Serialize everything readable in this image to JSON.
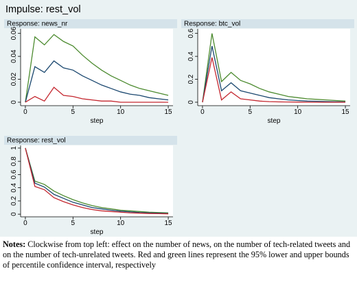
{
  "title": "Impulse: rest_vol",
  "chart_data": [
    {
      "type": "line",
      "title": "Response: news_nr",
      "x_label": "step",
      "x": [
        0,
        1,
        2,
        3,
        4,
        5,
        6,
        7,
        8,
        9,
        10,
        11,
        12,
        13,
        14,
        15
      ],
      "series": [
        {
          "color": "#4b8a2e",
          "values": [
            0,
            0.057,
            0.05,
            0.059,
            0.053,
            0.049,
            0.041,
            0.034,
            0.028,
            0.023,
            0.019,
            0.015,
            0.012,
            0.01,
            0.008,
            0.006
          ]
        },
        {
          "color": "#1a476f",
          "values": [
            0,
            0.031,
            0.026,
            0.036,
            0.03,
            0.028,
            0.023,
            0.019,
            0.015,
            0.012,
            0.009,
            0.007,
            0.006,
            0.004,
            0.003,
            0.002
          ]
        },
        {
          "color": "#c4262e",
          "values": [
            0,
            0.005,
            0.001,
            0.013,
            0.006,
            0.005,
            0.003,
            0.002,
            0.001,
            0.001,
            0,
            0,
            0,
            0,
            0,
            0
          ]
        }
      ],
      "xlim": [
        -0.5,
        15.5
      ],
      "xticks": [
        0,
        5,
        10,
        15
      ],
      "ylim": [
        -0.003,
        0.064
      ],
      "yticks": [
        0,
        0.02,
        0.04,
        0.06
      ]
    },
    {
      "type": "line",
      "title": "Response: btc_vol",
      "x_label": "step",
      "x": [
        0,
        1,
        2,
        3,
        4,
        5,
        6,
        7,
        8,
        9,
        10,
        11,
        12,
        13,
        14,
        15
      ],
      "series": [
        {
          "color": "#4b8a2e",
          "values": [
            0,
            0.6,
            0.18,
            0.26,
            0.19,
            0.16,
            0.12,
            0.09,
            0.07,
            0.05,
            0.04,
            0.03,
            0.025,
            0.02,
            0.015,
            0.01
          ]
        },
        {
          "color": "#1a476f",
          "values": [
            0,
            0.49,
            0.1,
            0.17,
            0.1,
            0.08,
            0.06,
            0.04,
            0.03,
            0.02,
            0.015,
            0.01,
            0.008,
            0.006,
            0.004,
            0.003
          ]
        },
        {
          "color": "#c4262e",
          "values": [
            0,
            0.39,
            0.02,
            0.09,
            0.03,
            0.02,
            0.01,
            0.005,
            0.003,
            0.002,
            0.001,
            0,
            0,
            0,
            0,
            0
          ]
        }
      ],
      "xlim": [
        -0.5,
        15.5
      ],
      "xticks": [
        0,
        5,
        10,
        15
      ],
      "ylim": [
        -0.03,
        0.64
      ],
      "yticks": [
        0,
        0.2,
        0.4,
        0.6
      ]
    },
    {
      "type": "line",
      "title": "Response: rest_vol",
      "x_label": "step",
      "x": [
        0,
        1,
        2,
        3,
        4,
        5,
        6,
        7,
        8,
        9,
        10,
        11,
        12,
        13,
        14,
        15
      ],
      "series": [
        {
          "color": "#4b8a2e",
          "values": [
            1,
            0.5,
            0.45,
            0.35,
            0.28,
            0.22,
            0.17,
            0.13,
            0.1,
            0.08,
            0.06,
            0.05,
            0.04,
            0.03,
            0.025,
            0.02
          ]
        },
        {
          "color": "#1a476f",
          "values": [
            1,
            0.47,
            0.41,
            0.3,
            0.24,
            0.18,
            0.14,
            0.1,
            0.08,
            0.06,
            0.045,
            0.035,
            0.025,
            0.02,
            0.015,
            0.01
          ]
        },
        {
          "color": "#c4262e",
          "values": [
            1,
            0.42,
            0.37,
            0.25,
            0.19,
            0.14,
            0.1,
            0.07,
            0.05,
            0.04,
            0.03,
            0.02,
            0.015,
            0.01,
            0.008,
            0.005
          ]
        }
      ],
      "xlim": [
        -0.5,
        15.5
      ],
      "xticks": [
        0,
        5,
        10,
        15
      ],
      "ylim": [
        -0.04,
        1.04
      ],
      "yticks": [
        0,
        0.2,
        0.4,
        0.6,
        0.8,
        1
      ]
    }
  ],
  "notes": {
    "label": "Notes:",
    "text": "Clockwise from top left: effect on the number of news, on the number of tech-related tweets and on the number of tech-unrelated tweets. Red and green lines represent the 95% lower and upper bounds of percentile confidence interval, respectively"
  }
}
